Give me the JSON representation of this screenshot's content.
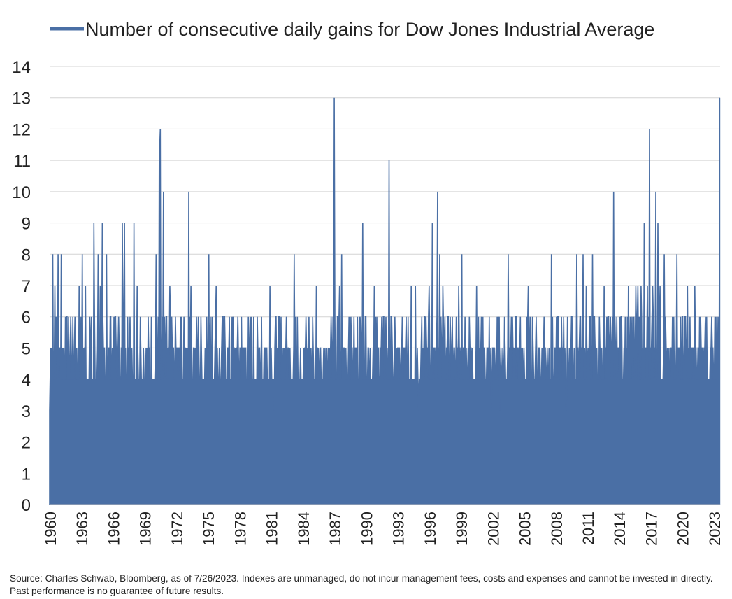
{
  "chart_data": {
    "type": "area",
    "title": "",
    "xlabel": "",
    "ylabel": "",
    "ylim": [
      0,
      14
    ],
    "xlim": [
      1960,
      2023.6
    ],
    "grid": "horizontal",
    "legend_position": "top-right",
    "y_ticks": [
      "0",
      "1",
      "2",
      "3",
      "4",
      "5",
      "6",
      "7",
      "8",
      "9",
      "10",
      "11",
      "12",
      "13",
      "14"
    ],
    "x_ticks": [
      "1960",
      "1963",
      "1966",
      "1969",
      "1972",
      "1975",
      "1978",
      "1981",
      "1984",
      "1987",
      "1990",
      "1993",
      "1996",
      "1999",
      "2002",
      "2005",
      "2008",
      "2011",
      "2014",
      "2017",
      "2020",
      "2023"
    ],
    "series": [
      {
        "name": "Number of consecutive daily gains for Dow Jones Industrial Average",
        "color": "#4a6fa5",
        "peaks": [
          [
            1960.0,
            3
          ],
          [
            1960.1,
            5
          ],
          [
            1960.3,
            8
          ],
          [
            1960.5,
            7
          ],
          [
            1960.8,
            8
          ],
          [
            1961.1,
            8
          ],
          [
            1961.5,
            6
          ],
          [
            1962.0,
            6
          ],
          [
            1962.4,
            6
          ],
          [
            1962.8,
            7
          ],
          [
            1963.1,
            8
          ],
          [
            1963.4,
            7
          ],
          [
            1963.8,
            6
          ],
          [
            1964.2,
            9
          ],
          [
            1964.6,
            8
          ],
          [
            1964.8,
            7
          ],
          [
            1965.0,
            9
          ],
          [
            1965.4,
            8
          ],
          [
            1965.8,
            6
          ],
          [
            1966.2,
            6
          ],
          [
            1966.6,
            5
          ],
          [
            1966.9,
            9
          ],
          [
            1967.1,
            9
          ],
          [
            1967.4,
            6
          ],
          [
            1967.8,
            5
          ],
          [
            1968.0,
            9
          ],
          [
            1968.3,
            7
          ],
          [
            1968.6,
            6
          ],
          [
            1968.9,
            5
          ],
          [
            1969.1,
            4
          ],
          [
            1969.8,
            4
          ],
          [
            1970.1,
            8
          ],
          [
            1970.4,
            11
          ],
          [
            1970.5,
            12
          ],
          [
            1970.8,
            10
          ],
          [
            1971.2,
            5
          ],
          [
            1971.4,
            7
          ],
          [
            1971.7,
            5
          ],
          [
            1972.1,
            5
          ],
          [
            1972.5,
            6
          ],
          [
            1972.8,
            5
          ],
          [
            1973.2,
            10
          ],
          [
            1973.4,
            7
          ],
          [
            1973.7,
            5
          ],
          [
            1974.1,
            6
          ],
          [
            1974.5,
            4
          ],
          [
            1974.9,
            6
          ],
          [
            1975.1,
            8
          ],
          [
            1975.4,
            6
          ],
          [
            1975.8,
            7
          ],
          [
            1976.2,
            4
          ],
          [
            1976.6,
            6
          ],
          [
            1977.0,
            5
          ],
          [
            1977.4,
            6
          ],
          [
            1977.8,
            5
          ],
          [
            1978.2,
            6
          ],
          [
            1978.6,
            5
          ],
          [
            1978.9,
            4
          ],
          [
            1979.3,
            4
          ],
          [
            1979.8,
            4
          ],
          [
            1980.1,
            6
          ],
          [
            1980.5,
            5
          ],
          [
            1980.9,
            7
          ],
          [
            1981.3,
            3
          ],
          [
            1981.6,
            5
          ],
          [
            1982.0,
            4
          ],
          [
            1982.4,
            5
          ],
          [
            1982.8,
            5
          ],
          [
            1983.2,
            8
          ],
          [
            1983.5,
            6
          ],
          [
            1983.8,
            5
          ],
          [
            1984.2,
            5
          ],
          [
            1984.6,
            6
          ],
          [
            1985.0,
            5
          ],
          [
            1985.3,
            7
          ],
          [
            1985.7,
            5
          ],
          [
            1986.0,
            5
          ],
          [
            1986.3,
            5
          ],
          [
            1986.7,
            6
          ],
          [
            1987.0,
            13
          ],
          [
            1987.3,
            6
          ],
          [
            1987.5,
            7
          ],
          [
            1987.7,
            8
          ],
          [
            1988.0,
            5
          ],
          [
            1988.4,
            6
          ],
          [
            1988.7,
            5
          ],
          [
            1989.1,
            5
          ],
          [
            1989.4,
            6
          ],
          [
            1989.7,
            9
          ],
          [
            1990.0,
            6
          ],
          [
            1990.4,
            5
          ],
          [
            1990.8,
            7
          ],
          [
            1991.1,
            4
          ],
          [
            1991.5,
            6
          ],
          [
            1991.9,
            6
          ],
          [
            1992.2,
            11
          ],
          [
            1992.5,
            5
          ],
          [
            1992.9,
            5
          ],
          [
            1993.3,
            4
          ],
          [
            1993.7,
            5
          ],
          [
            1994.0,
            6
          ],
          [
            1994.3,
            7
          ],
          [
            1994.7,
            7
          ],
          [
            1995.0,
            3
          ],
          [
            1995.3,
            6
          ],
          [
            1995.7,
            6
          ],
          [
            1996.0,
            7
          ],
          [
            1996.3,
            9
          ],
          [
            1996.5,
            5
          ],
          [
            1996.8,
            10
          ],
          [
            1997.0,
            8
          ],
          [
            1997.3,
            7
          ],
          [
            1997.7,
            5
          ],
          [
            1998.0,
            6
          ],
          [
            1998.4,
            5
          ],
          [
            1998.8,
            7
          ],
          [
            1999.1,
            8
          ],
          [
            1999.4,
            6
          ],
          [
            1999.7,
            5
          ],
          [
            2000.1,
            5
          ],
          [
            2000.5,
            7
          ],
          [
            2000.8,
            5
          ],
          [
            2001.2,
            5
          ],
          [
            2001.6,
            5
          ],
          [
            2001.9,
            3
          ],
          [
            2002.3,
            4
          ],
          [
            2002.7,
            3
          ],
          [
            2003.1,
            4
          ],
          [
            2003.5,
            8
          ],
          [
            2003.8,
            6
          ],
          [
            2004.2,
            6
          ],
          [
            2004.6,
            5
          ],
          [
            2005.0,
            5
          ],
          [
            2005.4,
            7
          ],
          [
            2005.8,
            6
          ],
          [
            2006.1,
            5
          ],
          [
            2006.5,
            5
          ],
          [
            2006.9,
            6
          ],
          [
            2007.2,
            5
          ],
          [
            2007.6,
            8
          ],
          [
            2007.9,
            5
          ],
          [
            2008.3,
            4
          ],
          [
            2008.7,
            4
          ],
          [
            2009.0,
            3
          ],
          [
            2009.3,
            5
          ],
          [
            2009.7,
            4
          ],
          [
            2010.0,
            8
          ],
          [
            2010.3,
            6
          ],
          [
            2010.6,
            8
          ],
          [
            2010.9,
            7
          ],
          [
            2011.2,
            6
          ],
          [
            2011.5,
            8
          ],
          [
            2011.8,
            5
          ],
          [
            2012.2,
            5
          ],
          [
            2012.6,
            7
          ],
          [
            2012.9,
            4
          ],
          [
            2013.2,
            6
          ],
          [
            2013.5,
            10
          ],
          [
            2013.8,
            6
          ],
          [
            2014.2,
            6
          ],
          [
            2014.6,
            6
          ],
          [
            2014.9,
            7
          ],
          [
            2015.3,
            4
          ],
          [
            2015.6,
            7
          ],
          [
            2015.8,
            7
          ],
          [
            2016.1,
            7
          ],
          [
            2016.4,
            9
          ],
          [
            2016.7,
            7
          ],
          [
            2016.9,
            12
          ],
          [
            2017.2,
            7
          ],
          [
            2017.5,
            10
          ],
          [
            2017.7,
            9
          ],
          [
            2017.9,
            7
          ],
          [
            2018.3,
            8
          ],
          [
            2018.6,
            5
          ],
          [
            2018.9,
            5
          ],
          [
            2019.2,
            6
          ],
          [
            2019.5,
            8
          ],
          [
            2019.8,
            5
          ],
          [
            2020.2,
            5
          ],
          [
            2020.5,
            7
          ],
          [
            2020.8,
            4
          ],
          [
            2021.2,
            7
          ],
          [
            2021.5,
            5
          ],
          [
            2021.9,
            5
          ],
          [
            2022.2,
            6
          ],
          [
            2022.5,
            4
          ],
          [
            2022.8,
            6
          ],
          [
            2023.1,
            6
          ],
          [
            2023.4,
            6
          ],
          [
            2023.56,
            13
          ]
        ]
      }
    ]
  },
  "source_note": "Source: Charles Schwab, Bloomberg, as of 7/26/2023.  Indexes are unmanaged, do not incur management fees, costs and expenses and cannot be invested in directly. Past performance is no guarantee of future results."
}
